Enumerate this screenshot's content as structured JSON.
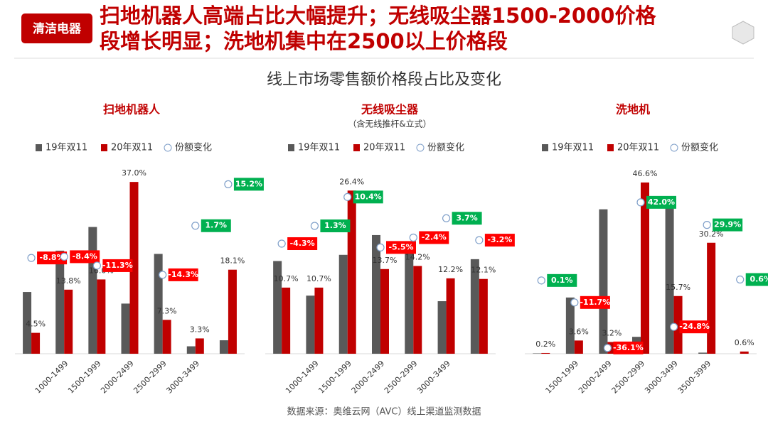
{
  "header": {
    "badge": "清洁电器",
    "title": [
      "扫地机器人高端占比大幅提升；无线吸尘器1500-2000价格",
      "段增长明显；洗地机集中在2500以上价格段"
    ]
  },
  "title": "线上市场零售额价格段占比及变化",
  "chart_data": [
    {
      "type": "bar",
      "title": "扫地机器人",
      "categories": [
        null,
        "1000-1499",
        "1500-1999",
        "2000-2499",
        "2500-2999",
        "3000-3499",
        null
      ],
      "series": [
        {
          "name": "19年双11",
          "color": "#595959",
          "values": [
            13.3,
            22.2,
            27.3,
            10.8,
            21.5,
            1.6,
            2.9
          ]
        },
        {
          "name": "20年双11",
          "color": "#c00000",
          "values": [
            4.5,
            13.8,
            16.0,
            37.0,
            7.3,
            3.3,
            18.1
          ],
          "value_labels": [
            "4.5%",
            "13.8%",
            "16.0%",
            "37.0%",
            "7.3%",
            "3.3%",
            "18.1%"
          ]
        },
        {
          "name": "份额变化",
          "type": "scatter",
          "axis": "y2",
          "color": "#7f9fc9",
          "values": [
            -8.8,
            -8.4,
            -11.3,
            null,
            -14.3,
            1.7,
            15.2
          ],
          "value_labels": [
            "-8.8%",
            "-8.4%",
            "-11.3%",
            null,
            "-14.3%",
            "1.7%",
            "15.2%"
          ]
        }
      ],
      "ylim": [
        0,
        41
      ],
      "y2lim": [
        -40,
        22
      ]
    },
    {
      "type": "bar",
      "title": "无线吸尘器",
      "subtitle": "（含无线推杆&立式）",
      "categories": [
        null,
        "1000-1499",
        "1500-1999",
        "2000-2499",
        "2500-2999",
        "3000-3499",
        null
      ],
      "series": [
        {
          "name": "19年双11",
          "color": "#595959",
          "values": [
            15.0,
            9.4,
            16.0,
            19.2,
            16.6,
            8.5,
            15.3
          ]
        },
        {
          "name": "20年双11",
          "color": "#c00000",
          "values": [
            10.7,
            10.7,
            26.4,
            13.7,
            14.2,
            12.2,
            12.1
          ],
          "value_labels": [
            "10.7%",
            "10.7%",
            "26.4%",
            "13.7%",
            "14.2%",
            "12.2%",
            "12.1%"
          ]
        },
        {
          "name": "份额变化",
          "type": "scatter",
          "axis": "y2",
          "color": "#7f9fc9",
          "values": [
            -4.3,
            1.3,
            10.4,
            -5.5,
            -2.4,
            3.7,
            -3.2
          ],
          "value_labels": [
            "-4.3%",
            "1.3%",
            "10.4%",
            "-5.5%",
            "-2.4%",
            "3.7%",
            "-3.2%"
          ]
        }
      ],
      "ylim": [
        0,
        30.8
      ],
      "y2lim": [
        -39,
        21
      ]
    },
    {
      "type": "bar",
      "title": "洗地机",
      "categories": [
        null,
        "1500-1999",
        "2000-2499",
        "2500-2999",
        "3000-3499",
        "3500-3999",
        null
      ],
      "series": [
        {
          "name": "19年双11",
          "color": "#595959",
          "values": [
            0.1,
            15.3,
            39.3,
            4.6,
            40.5,
            0.3,
            0
          ]
        },
        {
          "name": "20年双11",
          "color": "#c00000",
          "values": [
            0.2,
            3.6,
            3.2,
            46.6,
            15.7,
            30.2,
            0.6
          ],
          "value_labels": [
            "0.2%",
            "3.6%",
            "3.2%",
            "46.6%",
            "15.7%",
            "30.2%",
            "0.6%"
          ]
        },
        {
          "name": "份额变化",
          "type": "scatter",
          "axis": "y2",
          "color": "#7f9fc9",
          "values": [
            0.1,
            -11.7,
            -36.1,
            42.0,
            -24.8,
            29.9,
            0.6
          ],
          "value_labels": [
            "0.1%",
            "-11.7%",
            "-36.1%",
            "42.0%",
            "-24.8%",
            "29.9%",
            "0.6%"
          ]
        }
      ],
      "ylim": [
        0,
        51.8
      ],
      "y2lim": [
        -39.2,
        62.9
      ]
    }
  ],
  "source": "数据来源：奥维云网（AVC）线上渠道监测数据"
}
